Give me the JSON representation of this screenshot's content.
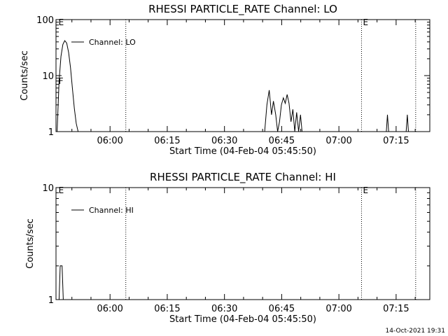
{
  "footer_timestamp": "14-Oct-2021 19:31",
  "chart_data": [
    {
      "type": "line",
      "title": "RHESSI PARTICLE_RATE Channel: LO",
      "xlabel": "Start Time (04-Feb-04 05:45:50)",
      "ylabel": "Counts/sec",
      "y_scale": "log",
      "ylim": [
        1,
        100
      ],
      "xlim_minutes": [
        0,
        98
      ],
      "y_ticks": [
        {
          "value": 1,
          "label": "1"
        },
        {
          "value": 10,
          "label": "10"
        },
        {
          "value": 100,
          "label": "100"
        }
      ],
      "x_ticks": [
        {
          "minute": 14.17,
          "label": "06:00"
        },
        {
          "minute": 29.17,
          "label": "06:15"
        },
        {
          "minute": 44.17,
          "label": "06:30"
        },
        {
          "minute": 59.17,
          "label": "06:45"
        },
        {
          "minute": 74.17,
          "label": "07:00"
        },
        {
          "minute": 89.17,
          "label": "07:15"
        }
      ],
      "legend": {
        "label": "Channel: LO",
        "placement": "top-left"
      },
      "markers": [
        {
          "minute": 0.3,
          "label": "E",
          "line": false
        },
        {
          "minute": 0.3,
          "label": "F",
          "line": false
        },
        {
          "minute": 18.3,
          "label": "",
          "line": true
        },
        {
          "minute": 80.1,
          "label": "E",
          "line": true
        },
        {
          "minute": 94.3,
          "label": "",
          "line": true
        }
      ],
      "series": [
        {
          "name": "Channel: LO",
          "segments": [
            [
              [
                0.3,
                1
              ],
              [
                0.8,
                8
              ],
              [
                1.3,
                22
              ],
              [
                1.8,
                36
              ],
              [
                2.3,
                42
              ],
              [
                2.8,
                38
              ],
              [
                3.3,
                26
              ],
              [
                3.8,
                14
              ],
              [
                4.3,
                6
              ],
              [
                4.8,
                2.6
              ],
              [
                5.3,
                1.4
              ],
              [
                5.8,
                1
              ],
              [
                6.3,
                1
              ]
            ],
            [
              [
                54.7,
                1
              ],
              [
                55.3,
                3
              ],
              [
                55.9,
                5.5
              ],
              [
                56.5,
                2
              ],
              [
                57.0,
                3.5
              ],
              [
                57.6,
                2
              ],
              [
                58.1,
                1
              ],
              [
                58.6,
                1.5
              ],
              [
                59.1,
                3
              ],
              [
                59.6,
                4
              ],
              [
                60.1,
                3.2
              ],
              [
                60.6,
                4.6
              ],
              [
                61.1,
                3.2
              ],
              [
                61.6,
                1.5
              ],
              [
                62.1,
                2.5
              ],
              [
                62.6,
                1
              ],
              [
                63.1,
                2.2
              ],
              [
                63.6,
                1
              ],
              [
                64.1,
                2
              ],
              [
                64.5,
                1
              ]
            ],
            [
              [
                86.6,
                1
              ],
              [
                86.9,
                2
              ],
              [
                87.2,
                1
              ]
            ],
            [
              [
                91.8,
                1
              ],
              [
                92.1,
                2
              ],
              [
                92.4,
                1
              ]
            ]
          ]
        }
      ]
    },
    {
      "type": "line",
      "title": "RHESSI PARTICLE_RATE Channel: HI",
      "xlabel": "Start Time (04-Feb-04 05:45:50)",
      "ylabel": "Counts/sec",
      "y_scale": "log",
      "ylim": [
        1,
        10
      ],
      "xlim_minutes": [
        0,
        98
      ],
      "y_ticks": [
        {
          "value": 1,
          "label": "1"
        },
        {
          "value": 10,
          "label": "10"
        }
      ],
      "x_ticks": [
        {
          "minute": 14.17,
          "label": "06:00"
        },
        {
          "minute": 29.17,
          "label": "06:15"
        },
        {
          "minute": 44.17,
          "label": "06:30"
        },
        {
          "minute": 59.17,
          "label": "06:45"
        },
        {
          "minute": 74.17,
          "label": "07:00"
        },
        {
          "minute": 89.17,
          "label": "07:15"
        }
      ],
      "legend": {
        "label": "Channel: HI",
        "placement": "top-left"
      },
      "markers": [
        {
          "minute": 0.3,
          "label": "E",
          "line": false
        },
        {
          "minute": 18.3,
          "label": "",
          "line": true
        },
        {
          "minute": 80.1,
          "label": "E",
          "line": true
        },
        {
          "minute": 94.3,
          "label": "",
          "line": true
        }
      ],
      "series": [
        {
          "name": "Channel: HI",
          "segments": [
            [
              [
                0.8,
                1
              ],
              [
                1.1,
                2
              ],
              [
                1.6,
                2
              ],
              [
                1.9,
                1
              ]
            ]
          ]
        }
      ]
    }
  ]
}
